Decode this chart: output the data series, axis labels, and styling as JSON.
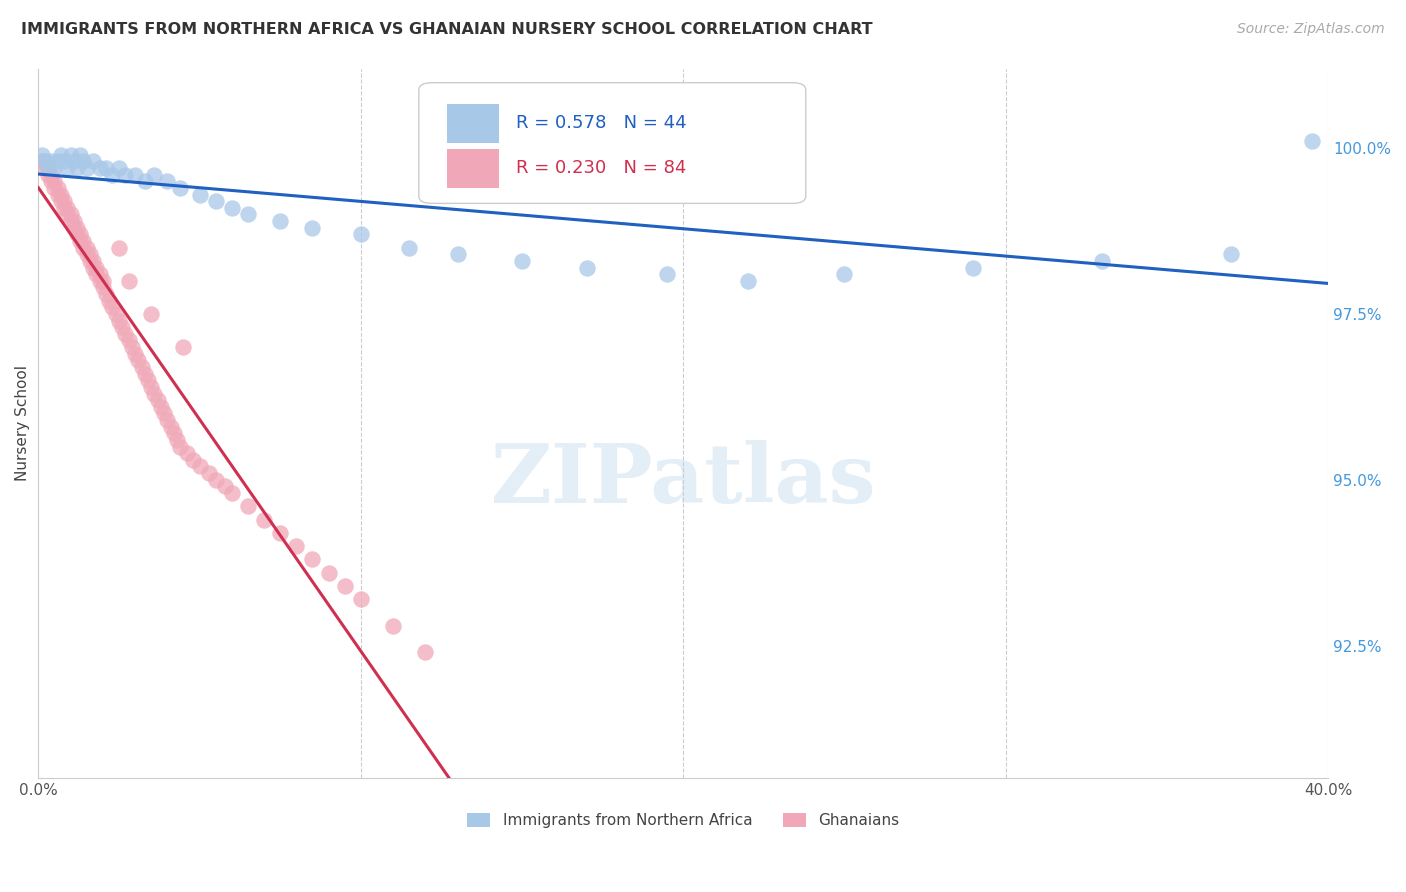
{
  "title": "IMMIGRANTS FROM NORTHERN AFRICA VS GHANAIAN NURSERY SCHOOL CORRELATION CHART",
  "source": "Source: ZipAtlas.com",
  "ylabel": "Nursery School",
  "ytick_labels": [
    "100.0%",
    "97.5%",
    "95.0%",
    "92.5%"
  ],
  "ytick_values": [
    1.0,
    0.975,
    0.95,
    0.925
  ],
  "xtick_positions": [
    0.0,
    0.1,
    0.2,
    0.3,
    0.4
  ],
  "xtick_labels": [
    "0.0%",
    "",
    "",
    "",
    "40.0%"
  ],
  "xlim": [
    0.0,
    0.4
  ],
  "ylim": [
    0.905,
    1.012
  ],
  "legend_blue_R": "R = 0.578",
  "legend_blue_N": "N = 44",
  "legend_pink_R": "R = 0.230",
  "legend_pink_N": "N = 84",
  "blue_color": "#a8c8e8",
  "pink_color": "#f0a8b8",
  "blue_line_color": "#2060c0",
  "pink_line_color": "#d03050",
  "watermark_text": "ZIPatlas",
  "blue_scatter_x": [
    0.001,
    0.002,
    0.003,
    0.004,
    0.005,
    0.006,
    0.007,
    0.008,
    0.009,
    0.01,
    0.011,
    0.012,
    0.013,
    0.014,
    0.015,
    0.017,
    0.019,
    0.021,
    0.023,
    0.025,
    0.027,
    0.03,
    0.033,
    0.036,
    0.04,
    0.044,
    0.05,
    0.055,
    0.06,
    0.065,
    0.075,
    0.085,
    0.1,
    0.115,
    0.13,
    0.15,
    0.17,
    0.195,
    0.22,
    0.25,
    0.29,
    0.33,
    0.37,
    0.395
  ],
  "blue_scatter_y": [
    0.999,
    0.998,
    0.997,
    0.998,
    0.997,
    0.998,
    0.999,
    0.998,
    0.997,
    0.999,
    0.998,
    0.997,
    0.999,
    0.998,
    0.997,
    0.998,
    0.997,
    0.997,
    0.996,
    0.997,
    0.996,
    0.996,
    0.995,
    0.996,
    0.995,
    0.994,
    0.993,
    0.992,
    0.991,
    0.99,
    0.989,
    0.988,
    0.987,
    0.985,
    0.984,
    0.983,
    0.982,
    0.981,
    0.98,
    0.981,
    0.982,
    0.983,
    0.984,
    1.001
  ],
  "pink_scatter_x": [
    0.001,
    0.002,
    0.002,
    0.003,
    0.003,
    0.004,
    0.004,
    0.005,
    0.005,
    0.006,
    0.006,
    0.007,
    0.007,
    0.008,
    0.008,
    0.009,
    0.009,
    0.01,
    0.01,
    0.011,
    0.011,
    0.012,
    0.012,
    0.013,
    0.013,
    0.014,
    0.014,
    0.015,
    0.015,
    0.016,
    0.016,
    0.017,
    0.017,
    0.018,
    0.018,
    0.019,
    0.019,
    0.02,
    0.02,
    0.021,
    0.022,
    0.023,
    0.024,
    0.025,
    0.026,
    0.027,
    0.028,
    0.029,
    0.03,
    0.031,
    0.032,
    0.033,
    0.034,
    0.035,
    0.036,
    0.037,
    0.038,
    0.039,
    0.04,
    0.041,
    0.042,
    0.043,
    0.044,
    0.046,
    0.048,
    0.05,
    0.053,
    0.055,
    0.058,
    0.06,
    0.065,
    0.07,
    0.075,
    0.08,
    0.085,
    0.09,
    0.095,
    0.1,
    0.11,
    0.12,
    0.025,
    0.028,
    0.035,
    0.045
  ],
  "pink_scatter_y": [
    0.998,
    0.997,
    0.998,
    0.996,
    0.997,
    0.995,
    0.996,
    0.994,
    0.995,
    0.993,
    0.994,
    0.992,
    0.993,
    0.991,
    0.992,
    0.99,
    0.991,
    0.989,
    0.99,
    0.988,
    0.989,
    0.987,
    0.988,
    0.986,
    0.987,
    0.985,
    0.986,
    0.984,
    0.985,
    0.983,
    0.984,
    0.982,
    0.983,
    0.981,
    0.982,
    0.98,
    0.981,
    0.979,
    0.98,
    0.978,
    0.977,
    0.976,
    0.975,
    0.974,
    0.973,
    0.972,
    0.971,
    0.97,
    0.969,
    0.968,
    0.967,
    0.966,
    0.965,
    0.964,
    0.963,
    0.962,
    0.961,
    0.96,
    0.959,
    0.958,
    0.957,
    0.956,
    0.955,
    0.954,
    0.953,
    0.952,
    0.951,
    0.95,
    0.949,
    0.948,
    0.946,
    0.944,
    0.942,
    0.94,
    0.938,
    0.936,
    0.934,
    0.932,
    0.928,
    0.924,
    0.985,
    0.98,
    0.975,
    0.97
  ]
}
